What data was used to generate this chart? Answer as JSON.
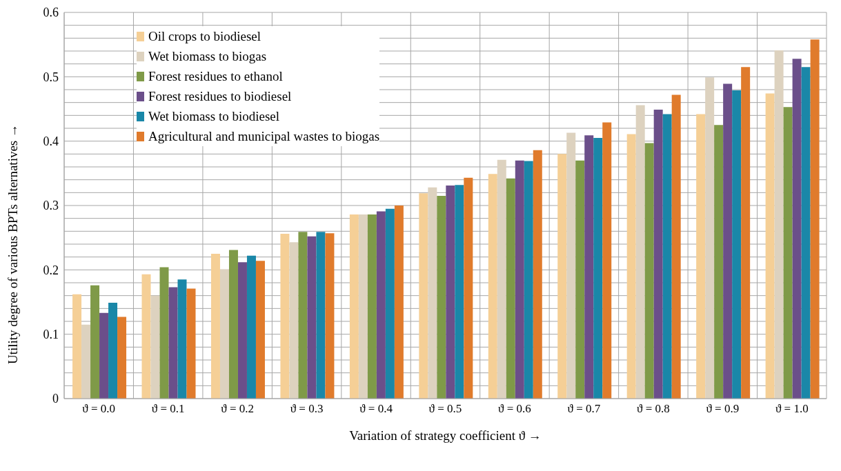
{
  "chart_data": {
    "type": "bar",
    "xlabel": "Variation of strategy coefficient ϑ →",
    "ylabel": "Utility degree of various BPTs alternatives →",
    "categories": [
      "ϑ = 0.0",
      "ϑ = 0.1",
      "ϑ = 0.2",
      "ϑ = 0.3",
      "ϑ = 0.4",
      "ϑ = 0.5",
      "ϑ = 0.6",
      "ϑ = 0.7",
      "ϑ = 0.8",
      "ϑ = 0.9",
      "ϑ = 1.0"
    ],
    "series": [
      {
        "name": "Oil crops to biodiesel",
        "color": "#f5cf96",
        "values": [
          0.162,
          0.193,
          0.225,
          0.256,
          0.286,
          0.319,
          0.349,
          0.38,
          0.411,
          0.442,
          0.474
        ]
      },
      {
        "name": "Wet biomass to biogas",
        "color": "#ddd2bf",
        "values": [
          0.115,
          0.16,
          0.201,
          0.243,
          0.286,
          0.328,
          0.371,
          0.413,
          0.456,
          0.499,
          0.541
        ]
      },
      {
        "name": "Forest residues to ethanol",
        "color": "#7f9a48",
        "values": [
          0.176,
          0.204,
          0.231,
          0.259,
          0.286,
          0.315,
          0.342,
          0.37,
          0.397,
          0.425,
          0.453
        ]
      },
      {
        "name": "Forest residues to biodiesel",
        "color": "#6b4f8a",
        "values": [
          0.133,
          0.173,
          0.212,
          0.252,
          0.291,
          0.331,
          0.37,
          0.409,
          0.449,
          0.489,
          0.528
        ]
      },
      {
        "name": "Wet biomass to biodiesel",
        "color": "#1a87a8",
        "values": [
          0.149,
          0.185,
          0.222,
          0.259,
          0.295,
          0.332,
          0.369,
          0.405,
          0.442,
          0.479,
          0.515
        ]
      },
      {
        "name": "Agricultural and municipal wastes to biogas",
        "color": "#e07b2c",
        "values": [
          0.127,
          0.171,
          0.214,
          0.257,
          0.3,
          0.343,
          0.386,
          0.429,
          0.472,
          0.515,
          0.558
        ]
      }
    ],
    "ylim": [
      0,
      0.6
    ],
    "yticks": [
      0,
      {
        "value": 0.02,
        "label": null
      },
      {
        "value": 0.04,
        "label": null
      },
      {
        "value": 0.06,
        "label": null
      },
      {
        "value": 0.08,
        "label": null
      },
      {
        "value": 0.1,
        "label": "0.1"
      },
      {
        "value": 0.12,
        "label": null
      },
      {
        "value": 0.14,
        "label": null
      },
      {
        "value": 0.16,
        "label": null
      },
      {
        "value": 0.18,
        "label": null
      },
      {
        "value": 0.2,
        "label": "0.2"
      },
      {
        "value": 0.22,
        "label": null
      },
      {
        "value": 0.24,
        "label": null
      },
      {
        "value": 0.26,
        "label": null
      },
      {
        "value": 0.28,
        "label": null
      },
      {
        "value": 0.3,
        "label": "0.3"
      },
      {
        "value": 0.32,
        "label": null
      },
      {
        "value": 0.34,
        "label": null
      },
      {
        "value": 0.36,
        "label": null
      },
      {
        "value": 0.38,
        "label": null
      },
      {
        "value": 0.4,
        "label": "0.4"
      },
      {
        "value": 0.42,
        "label": null
      },
      {
        "value": 0.44,
        "label": null
      },
      {
        "value": 0.46,
        "label": null
      },
      {
        "value": 0.48,
        "label": null
      },
      {
        "value": 0.5,
        "label": "0.5"
      },
      {
        "value": 0.52,
        "label": null
      },
      {
        "value": 0.54,
        "label": null
      },
      {
        "value": 0.56,
        "label": null
      },
      {
        "value": 0.58,
        "label": null
      },
      {
        "value": 0.6,
        "label": "0.6"
      }
    ],
    "grid": true,
    "legend": "top left"
  }
}
